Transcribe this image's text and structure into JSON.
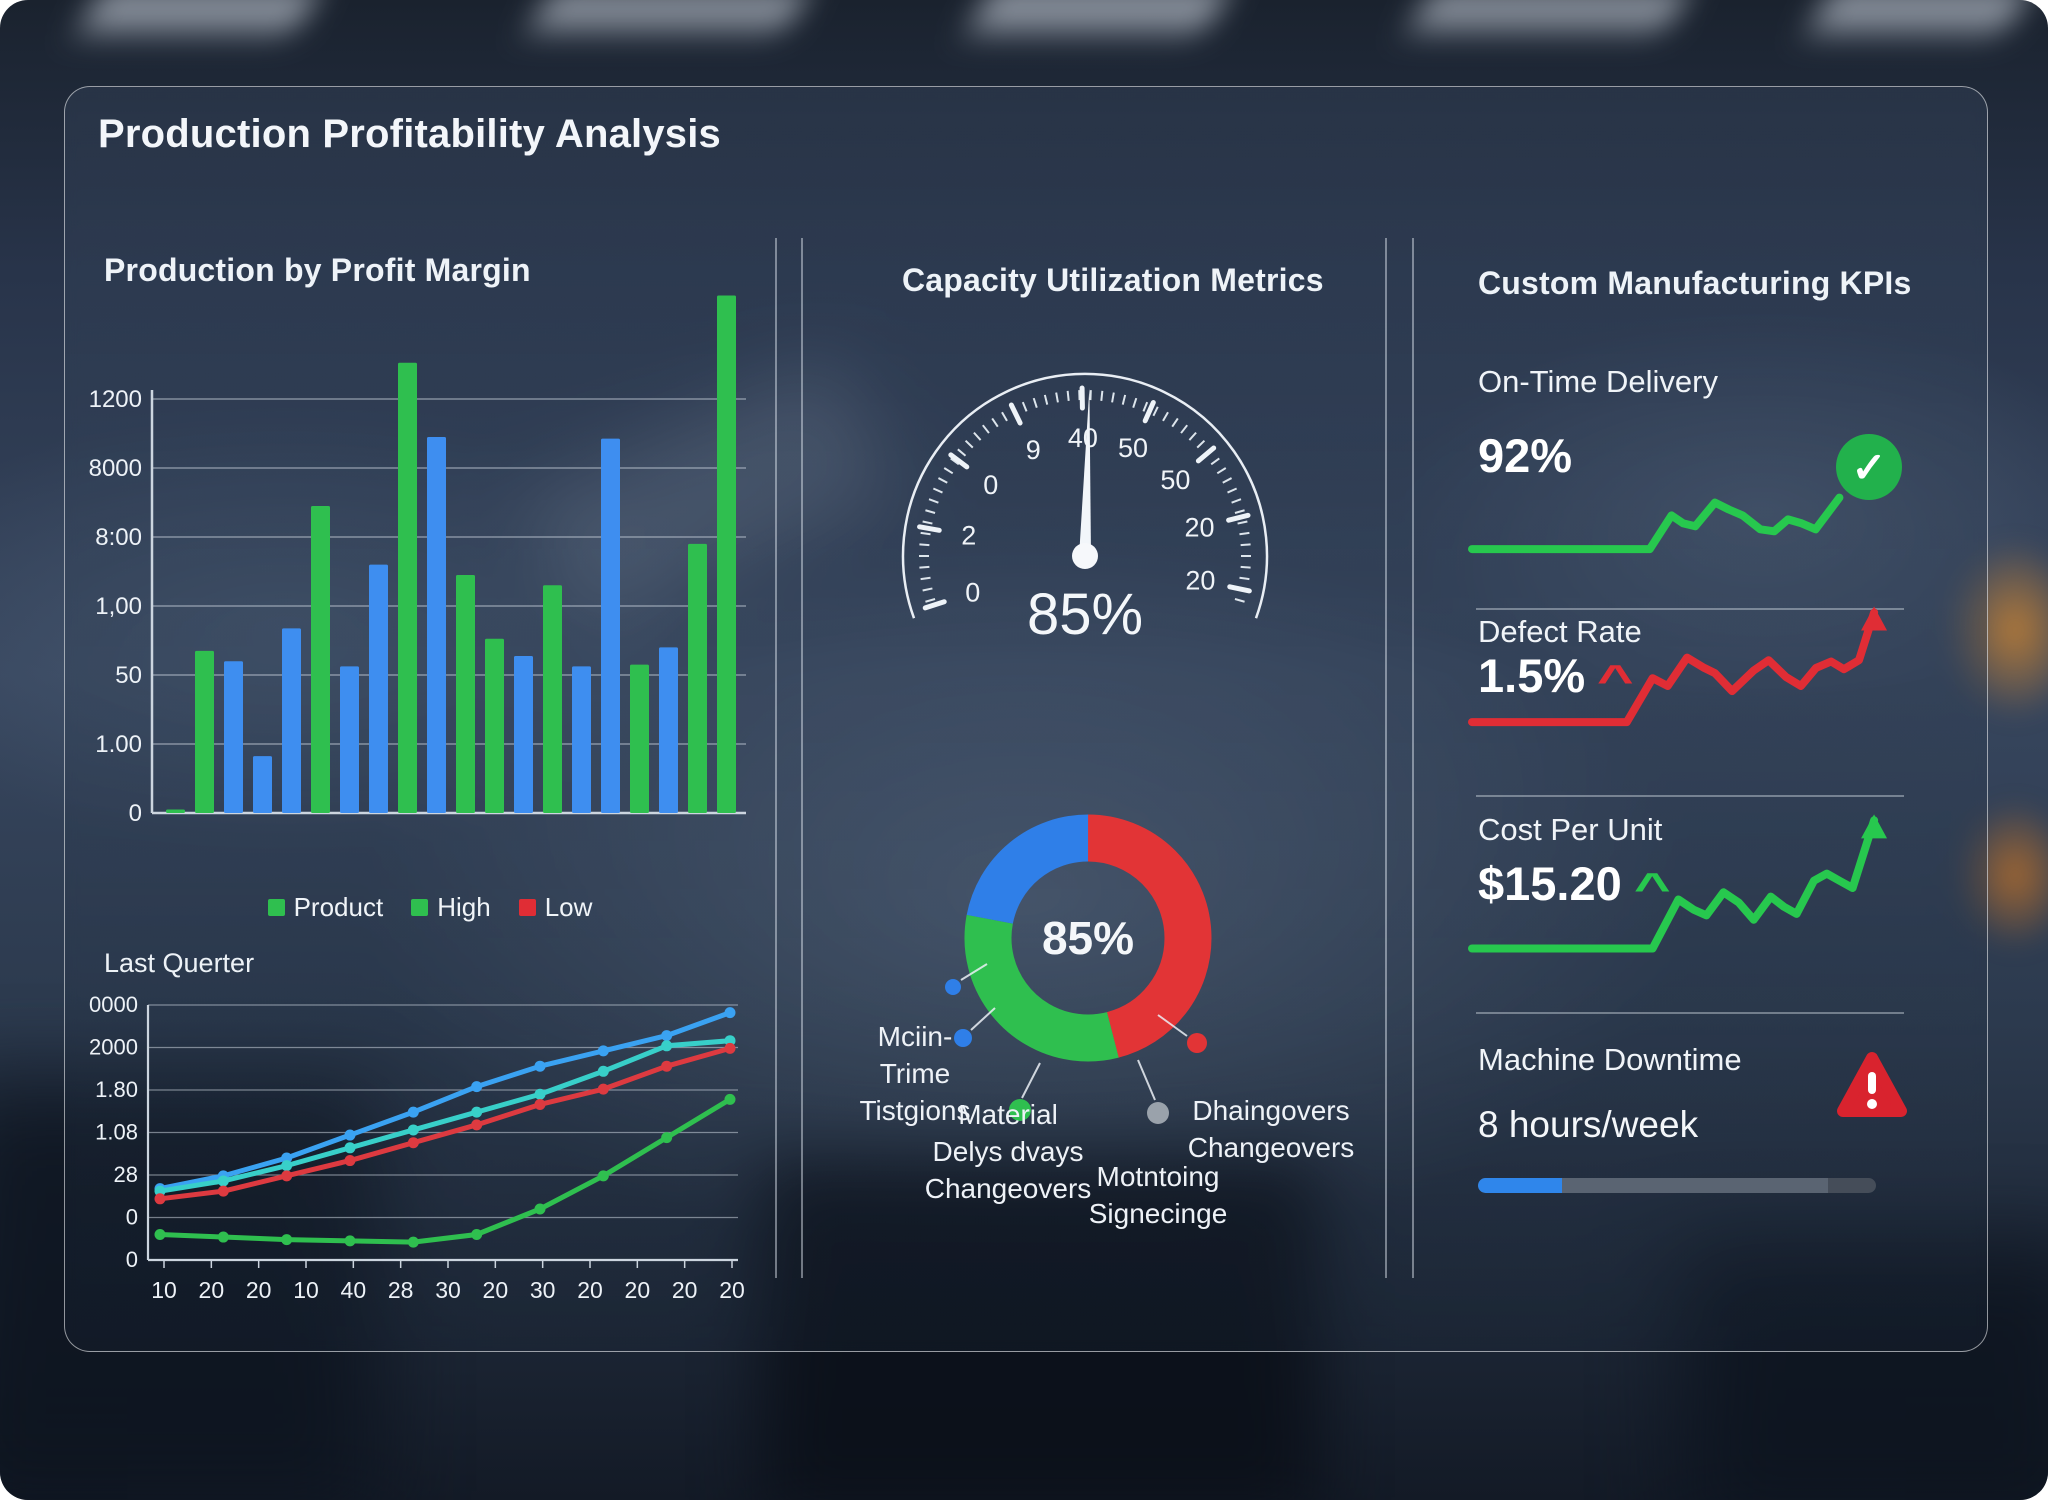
{
  "palette": {
    "green": "#2fbf4f",
    "blue": "#3e8ef0",
    "red": "#e02d35",
    "teal": "#38cfc9",
    "line_blue": "#3aa2f2",
    "kpi_green": "#27c84e",
    "progress_blue": "#2f86eb",
    "warning_red": "#d9232e",
    "check_green": "#22b14c",
    "donut_red": "#e23436",
    "donut_blue": "#2f7fe8",
    "gray_dot": "#9aa2ab",
    "axis": "#ccd5df",
    "grid": "rgba(215,224,233,0.5)",
    "text": "#f2f6fa"
  },
  "header": {
    "title": "Production Profitability Analysis"
  },
  "left": {
    "bar_title": "Production by Profit Margin",
    "line_title": "Last Querter"
  },
  "middle": {
    "title": "Capacity Utilization Metrics"
  },
  "right": {
    "title": "Custom Manufacturing KPIs",
    "kpis": [
      {
        "label": "On-Time Delivery",
        "value": "92%",
        "icon": "check",
        "icon_glyph": "✓"
      },
      {
        "label": "Defect Rate",
        "value": "1.5%",
        "trend": "up",
        "trend_glyph": "^",
        "trend_color": "#e02d35"
      },
      {
        "label": "Cost Per Unit",
        "value": "$15.20",
        "trend": "up",
        "trend_glyph": "^",
        "trend_color": "#27c84e"
      },
      {
        "label": "Machine Downtime",
        "value": "8 hours/week",
        "icon": "warning",
        "progress_pct": 21
      }
    ]
  },
  "chart_data": [
    {
      "type": "bar",
      "title": "Production by Profit Margin",
      "y_tick_labels_bottom_to_top": [
        "0",
        "1.00",
        "50",
        "1,00",
        "8:00",
        "8000",
        "1200"
      ],
      "ylim": [
        0,
        1200
      ],
      "grid": true,
      "values": [
        10,
        470,
        440,
        165,
        535,
        890,
        425,
        720,
        1305,
        1090,
        690,
        505,
        455,
        660,
        425,
        1085,
        430,
        480,
        780,
        1500
      ],
      "colors": [
        "green",
        "green",
        "blue",
        "blue",
        "blue",
        "green",
        "blue",
        "blue",
        "green",
        "blue",
        "green",
        "green",
        "blue",
        "green",
        "blue",
        "blue",
        "green",
        "blue",
        "green",
        "green"
      ],
      "legend_items": [
        {
          "label": "Product",
          "color": "#2fbf4f"
        },
        {
          "label": "High",
          "color": "#2fbf4f"
        },
        {
          "label": "Low",
          "color": "#e02d35"
        }
      ]
    },
    {
      "type": "line",
      "title": "Last Querter",
      "y_tick_labels_bottom_to_top": [
        "0",
        "0",
        "28",
        "1.08",
        "1.80",
        "2000",
        "0000"
      ],
      "x_tick_labels": [
        "10",
        "20",
        "20",
        "10",
        "40",
        "28",
        "30",
        "20",
        "30",
        "20",
        "20",
        "20",
        "20"
      ],
      "grid": true,
      "value_unit": "percent of plot height",
      "series": [
        {
          "name": "blue",
          "color": "#3aa2f2",
          "values": [
            28,
            33,
            40,
            49,
            58,
            68,
            76,
            82,
            88,
            97
          ]
        },
        {
          "name": "teal",
          "color": "#38cfc9",
          "values": [
            27,
            31,
            37,
            44,
            51,
            58,
            65,
            74,
            84,
            86
          ]
        },
        {
          "name": "red",
          "color": "#dd3a40",
          "values": [
            24,
            27,
            33,
            39,
            46,
            53,
            61,
            67,
            76,
            83
          ]
        },
        {
          "name": "green",
          "color": "#2fbf4f",
          "values": [
            10,
            9,
            8,
            7.5,
            7,
            10,
            20,
            33,
            48,
            63
          ]
        }
      ]
    },
    {
      "type": "gauge",
      "value": "85%",
      "arc": [
        200,
        -20
      ],
      "needle_angle_deg": 88.5,
      "tick_labels": [
        {
          "text": "0",
          "angle": 198
        },
        {
          "text": "2",
          "angle": 170
        },
        {
          "text": "0",
          "angle": 143
        },
        {
          "text": "9",
          "angle": 116
        },
        {
          "text": "40",
          "angle": 91
        },
        {
          "text": "50",
          "angle": 66
        },
        {
          "text": "50",
          "angle": 40
        },
        {
          "text": "20",
          "angle": 14
        },
        {
          "text": "20",
          "angle": -12
        }
      ]
    },
    {
      "type": "donut",
      "center_label": "85%",
      "slices": [
        {
          "name": "red",
          "pct": 46,
          "color": "#e23436"
        },
        {
          "name": "green",
          "pct": 32,
          "color": "#2fbf4f"
        },
        {
          "name": "blue",
          "pct": 22,
          "color": "#2f7fe8"
        }
      ],
      "callouts": [
        {
          "dot_color": "#2f7fe8",
          "lines": [
            "Mciin-",
            "Trime",
            "Tistgions"
          ],
          "dots": [
            [
              98,
              37,
              8
            ],
            [
              108,
              88,
              9
            ]
          ],
          "leaders": [
            [
              106,
              30,
              132,
              14
            ],
            [
              116,
              80,
              140,
              58
            ]
          ]
        },
        {
          "dot_color": "#2fbf4f",
          "lines": [
            "Material",
            "Delys dvays",
            "Changeovers"
          ],
          "dots": [
            [
              165,
              160,
              11
            ]
          ],
          "leaders": [
            [
              185,
              113,
              167,
              148
            ]
          ]
        },
        {
          "dot_color": "#9aa2ab",
          "lines": [
            "Motntoing",
            "Signecinge"
          ],
          "dots": [
            [
              303,
              163,
              11
            ]
          ],
          "leaders": [
            [
              283,
              110,
              300,
              150
            ]
          ]
        },
        {
          "dot_color": "#e23436",
          "lines": [
            "Dhaingovers",
            "Changeovers"
          ],
          "dots": [
            [
              342,
              93,
              10
            ]
          ],
          "leaders": [
            [
              303,
              65,
              332,
              86
            ]
          ]
        }
      ]
    },
    {
      "type": "sparklines",
      "items": [
        {
          "name": "on_time_delivery",
          "color": "#27c84e",
          "end": "check",
          "points": [
            [
              0,
              0.1
            ],
            [
              0.45,
              0.1
            ],
            [
              0.505,
              0.44
            ],
            [
              0.535,
              0.36
            ],
            [
              0.565,
              0.33
            ],
            [
              0.615,
              0.57
            ],
            [
              0.65,
              0.5
            ],
            [
              0.685,
              0.44
            ],
            [
              0.73,
              0.3
            ],
            [
              0.765,
              0.28
            ],
            [
              0.8,
              0.4
            ],
            [
              0.835,
              0.36
            ],
            [
              0.87,
              0.3
            ],
            [
              0.93,
              0.62
            ]
          ]
        },
        {
          "name": "defect_rate",
          "color": "#e02d35",
          "end": "arrow",
          "points": [
            [
              0,
              0.1
            ],
            [
              0.36,
              0.1
            ],
            [
              0.42,
              0.44
            ],
            [
              0.455,
              0.38
            ],
            [
              0.5,
              0.6
            ],
            [
              0.54,
              0.52
            ],
            [
              0.565,
              0.48
            ],
            [
              0.605,
              0.34
            ],
            [
              0.655,
              0.5
            ],
            [
              0.69,
              0.58
            ],
            [
              0.73,
              0.45
            ],
            [
              0.765,
              0.38
            ],
            [
              0.8,
              0.52
            ],
            [
              0.835,
              0.57
            ],
            [
              0.865,
              0.51
            ],
            [
              0.9,
              0.58
            ],
            [
              0.935,
              0.95
            ]
          ]
        },
        {
          "name": "cost_per_unit",
          "color": "#27c84e",
          "end": "arrow",
          "points": [
            [
              0,
              0.08
            ],
            [
              0.42,
              0.08
            ],
            [
              0.48,
              0.42
            ],
            [
              0.515,
              0.35
            ],
            [
              0.545,
              0.31
            ],
            [
              0.585,
              0.47
            ],
            [
              0.62,
              0.4
            ],
            [
              0.655,
              0.28
            ],
            [
              0.695,
              0.44
            ],
            [
              0.725,
              0.37
            ],
            [
              0.755,
              0.32
            ],
            [
              0.795,
              0.55
            ],
            [
              0.825,
              0.6
            ],
            [
              0.855,
              0.55
            ],
            [
              0.885,
              0.5
            ],
            [
              0.935,
              0.97
            ]
          ]
        }
      ]
    }
  ]
}
